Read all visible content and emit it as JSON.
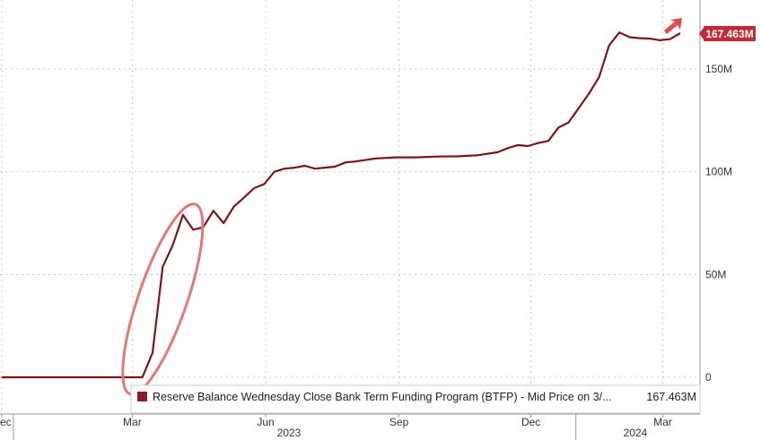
{
  "chart_data": {
    "type": "line",
    "title": "",
    "xlabel": "",
    "ylabel": "",
    "x_ticks": [
      "Dec",
      "Mar",
      "Jun",
      "Sep",
      "Dec",
      "Mar"
    ],
    "x_years": [
      "2023",
      "2024"
    ],
    "y_ticks": [
      "0",
      "50M",
      "100M",
      "150M"
    ],
    "ylim": [
      -10,
      180
    ],
    "y_unit": "M",
    "grid": true,
    "legend": {
      "position": "bottom",
      "entries": [
        {
          "label": "Reserve Balance Wednesday Close Bank Term Funding Program (BTFP) - Mid Price on 3/...",
          "value": "167.463M"
        }
      ]
    },
    "last_value_label": "167.463M",
    "annotation": "red ellipse highlighting the sharp rise in March 2023",
    "series": [
      {
        "name": "Reserve Balance Wednesday Close Bank Term Funding Program (BTFP) - Mid Price on 3/...",
        "color": "#7a1520",
        "points": [
          [
            "2022-12-01",
            0
          ],
          [
            "2023-01-15",
            0
          ],
          [
            "2023-02-15",
            0
          ],
          [
            "2023-03-01",
            0
          ],
          [
            "2023-03-08",
            0
          ],
          [
            "2023-03-15",
            11.9
          ],
          [
            "2023-03-22",
            53.7
          ],
          [
            "2023-03-29",
            64.4
          ],
          [
            "2023-04-05",
            79.0
          ],
          [
            "2023-04-12",
            71.8
          ],
          [
            "2023-04-19",
            73.0
          ],
          [
            "2023-04-26",
            81.0
          ],
          [
            "2023-05-03",
            75.0
          ],
          [
            "2023-05-10",
            83.0
          ],
          [
            "2023-05-17",
            87.4
          ],
          [
            "2023-05-24",
            92.0
          ],
          [
            "2023-05-31",
            94.0
          ],
          [
            "2023-06-07",
            100.0
          ],
          [
            "2023-06-14",
            101.5
          ],
          [
            "2023-06-21",
            102.0
          ],
          [
            "2023-06-28",
            102.9
          ],
          [
            "2023-07-05",
            101.5
          ],
          [
            "2023-07-12",
            102.0
          ],
          [
            "2023-07-19",
            102.5
          ],
          [
            "2023-07-26",
            104.5
          ],
          [
            "2023-08-02",
            105.0
          ],
          [
            "2023-08-16",
            106.5
          ],
          [
            "2023-08-30",
            107.0
          ],
          [
            "2023-09-13",
            107.0
          ],
          [
            "2023-09-27",
            107.4
          ],
          [
            "2023-10-11",
            107.5
          ],
          [
            "2023-10-25",
            108.0
          ],
          [
            "2023-11-08",
            109.5
          ],
          [
            "2023-11-15",
            111.5
          ],
          [
            "2023-11-22",
            113.0
          ],
          [
            "2023-11-29",
            112.5
          ],
          [
            "2023-12-06",
            114.0
          ],
          [
            "2023-12-13",
            115.0
          ],
          [
            "2023-12-20",
            121.5
          ],
          [
            "2023-12-27",
            124.0
          ],
          [
            "2024-01-03",
            131.0
          ],
          [
            "2024-01-10",
            138.0
          ],
          [
            "2024-01-17",
            146.0
          ],
          [
            "2024-01-24",
            161.5
          ],
          [
            "2024-01-31",
            167.8
          ],
          [
            "2024-02-07",
            165.5
          ],
          [
            "2024-02-14",
            165.0
          ],
          [
            "2024-02-21",
            164.8
          ],
          [
            "2024-02-28",
            164.0
          ],
          [
            "2024-03-06",
            164.5
          ],
          [
            "2024-03-13",
            167.463
          ]
        ]
      }
    ],
    "colors": {
      "line": "#7a1520",
      "legend_swatch": "#8c1a2b",
      "value_tag": "#c22a35",
      "highlight_ellipse": "#e07a78",
      "arrow": "#e8474c"
    }
  }
}
